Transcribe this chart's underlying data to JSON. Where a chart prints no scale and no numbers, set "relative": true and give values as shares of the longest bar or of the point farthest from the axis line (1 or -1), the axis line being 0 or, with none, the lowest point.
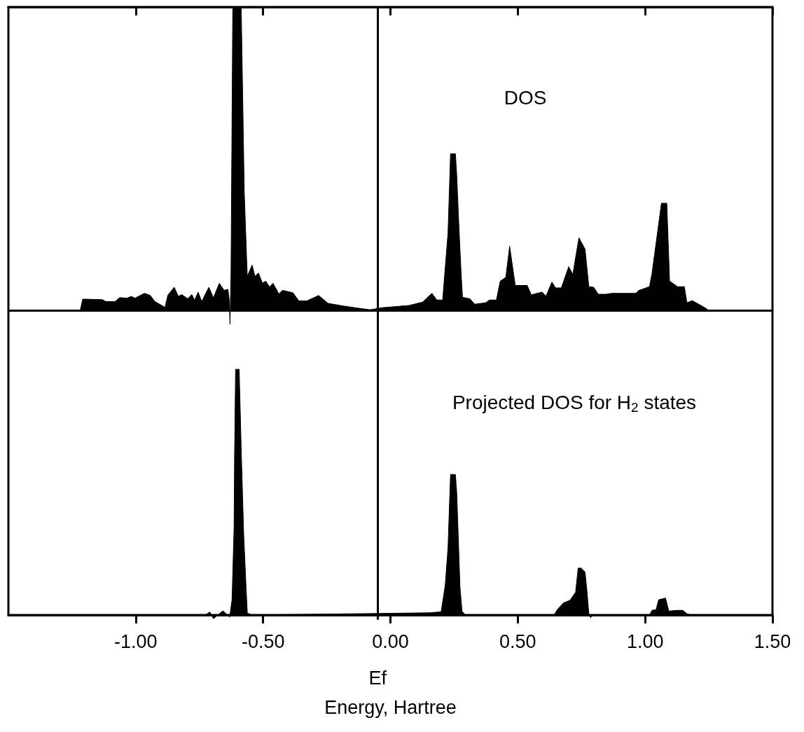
{
  "chart_data": [
    {
      "type": "area",
      "title": "DOS",
      "relative": true,
      "color": "#000000",
      "xlim": [
        -1.5,
        1.5
      ],
      "xticks": [
        -1,
        -0.5,
        0,
        0.5,
        1,
        1.5
      ],
      "tick_labels": false,
      "x": [
        -1.218,
        -1.208,
        -1.131,
        -1.118,
        -1.081,
        -1.063,
        -1.035,
        -1.017,
        -1.003,
        -0.966,
        -0.943,
        -0.925,
        -0.885,
        -0.874,
        -0.849,
        -0.833,
        -0.819,
        -0.796,
        -0.78,
        -0.769,
        -0.755,
        -0.741,
        -0.713,
        -0.695,
        -0.672,
        -0.653,
        -0.638,
        -0.633,
        -0.63,
        -0.626,
        -0.619,
        -0.586,
        -0.574,
        -0.565,
        -0.562,
        -0.543,
        -0.532,
        -0.518,
        -0.503,
        -0.489,
        -0.475,
        -0.461,
        -0.438,
        -0.424,
        -0.383,
        -0.36,
        -0.328,
        -0.282,
        -0.245,
        -0.19,
        -0.135,
        -0.08,
        -0.028,
        0.073,
        0.126,
        0.163,
        0.182,
        0.205,
        0.226,
        0.236,
        0.255,
        0.26,
        0.268,
        0.278,
        0.283,
        0.312,
        0.331,
        0.374,
        0.389,
        0.416,
        0.431,
        0.453,
        0.468,
        0.49,
        0.537,
        0.553,
        0.595,
        0.611,
        0.634,
        0.648,
        0.671,
        0.7,
        0.716,
        0.74,
        0.764,
        0.779,
        0.798,
        0.816,
        0.847,
        0.869,
        0.911,
        0.964,
        0.974,
        1.017,
        1.027,
        1.064,
        1.085,
        1.096,
        1.112,
        1.127,
        1.154,
        1.164,
        1.185,
        1.238,
        1.249
      ],
      "values": [
        0,
        0.037,
        0.035,
        0.029,
        0.029,
        0.042,
        0.04,
        0.046,
        0.04,
        0.056,
        0.049,
        0.029,
        0.01,
        0.05,
        0.076,
        0.046,
        0.052,
        0.038,
        0.052,
        0.033,
        0.06,
        0.029,
        0.076,
        0.041,
        0.089,
        0.066,
        0.069,
        0.035,
        -0.046,
        0.123,
        1,
        1,
        0.39,
        0.177,
        0.112,
        0.149,
        0.112,
        0.123,
        0.09,
        0.096,
        0.077,
        0.089,
        0.054,
        0.066,
        0.058,
        0.031,
        0.031,
        0.049,
        0.023,
        0.015,
        0.008,
        0.002,
        0.009,
        0.016,
        0.027,
        0.056,
        0.034,
        0.034,
        0.255,
        0.516,
        0.516,
        0.45,
        0.291,
        0.113,
        0.043,
        0.038,
        0.02,
        0.025,
        0.034,
        0.034,
        0.096,
        0.109,
        0.211,
        0.082,
        0.082,
        0.051,
        0.06,
        0.047,
        0.093,
        0.074,
        0.074,
        0.144,
        0.118,
        0.239,
        0.202,
        0.078,
        0.076,
        0.053,
        0.053,
        0.056,
        0.056,
        0.056,
        0.065,
        0.078,
        0.122,
        0.353,
        0.353,
        0.096,
        0.087,
        0.078,
        0.078,
        0.025,
        0.032,
        0.007,
        0
      ],
      "ref_lines": [
        {
          "axis": "x",
          "value": -0.05,
          "color": "#000000"
        }
      ]
    },
    {
      "type": "area",
      "title": "Projected DOS for H$_{2}$ states",
      "xlabel": "Energy, Hartree",
      "relative": true,
      "color": "#000000",
      "xlim": [
        -1.5,
        1.5
      ],
      "xticks": [
        {
          "value": -1,
          "label": "-1.00"
        },
        {
          "value": -0.5,
          "label": "-0.50"
        },
        {
          "value": 0,
          "label": "0.00"
        },
        {
          "value": 0.5,
          "label": "0.50"
        },
        {
          "value": 1,
          "label": "1.00"
        },
        {
          "value": 1.5,
          "label": "1.50"
        }
      ],
      "tick_labels": "x",
      "x": [
        -0.727,
        -0.709,
        -0.695,
        -0.658,
        -0.631,
        -0.622,
        -0.614,
        -0.612,
        -0.608,
        -0.594,
        -0.585,
        -0.576,
        -0.567,
        -0.562,
        -0.544,
        0.152,
        0.199,
        0.215,
        0.226,
        0.231,
        0.236,
        0.255,
        0.26,
        0.266,
        0.273,
        0.281,
        0.294,
        0.642,
        0.657,
        0.679,
        0.705,
        0.727,
        0.737,
        0.748,
        0.764,
        0.772,
        0.779,
        0.785,
        0.795,
        1.017,
        1.027,
        1.043,
        1.053,
        1.08,
        1.093,
        1.122,
        1.148,
        1.164,
        1.18
      ],
      "values": [
        0,
        0.012,
        -0.015,
        0.017,
        -0.008,
        0.062,
        0.354,
        0.647,
        1,
        1,
        0.639,
        0.323,
        0.115,
        0.008,
        0,
        0.009,
        0.013,
        0.12,
        0.273,
        0.426,
        0.572,
        0.572,
        0.503,
        0.328,
        0.115,
        0.016,
        0,
        0,
        0.024,
        0.049,
        0.06,
        0.093,
        0.191,
        0.191,
        0.175,
        0.093,
        0.005,
        -0.011,
        0,
        0,
        0.019,
        0.022,
        0.062,
        0.069,
        0.016,
        0.019,
        0.019,
        0.005,
        0
      ],
      "ref_lines": [
        {
          "axis": "x",
          "value": -0.05,
          "label": "Ef",
          "color": "#000000"
        }
      ]
    }
  ]
}
